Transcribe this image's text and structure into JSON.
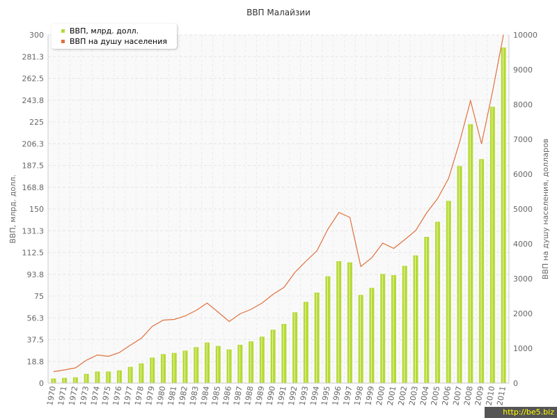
{
  "chart_data": {
    "type": "bar",
    "title": "ВВП Малайзии",
    "ylabel": "ВВП, млрд. долл.",
    "y2label": "ВВП на душу населения, долларов",
    "categories": [
      "1970",
      "1971",
      "1972",
      "1973",
      "1974",
      "1975",
      "1976",
      "1977",
      "1978",
      "1979",
      "1980",
      "1981",
      "1982",
      "1983",
      "1984",
      "1985",
      "1986",
      "1987",
      "1988",
      "1989",
      "1990",
      "1991",
      "1992",
      "1993",
      "1994",
      "1995",
      "1996",
      "1997",
      "1998",
      "1999",
      "2000",
      "2001",
      "2002",
      "2003",
      "2004",
      "2005",
      "2006",
      "2007",
      "2008",
      "2009",
      "2010",
      "2011"
    ],
    "ylim": [
      0,
      300
    ],
    "y2lim": [
      0,
      10000
    ],
    "y_ticks": [
      "0",
      "18.8",
      "37.5",
      "56.3",
      "75",
      "93.8",
      "112.5",
      "131.3",
      "150",
      "168.8",
      "187.5",
      "206.3",
      "225",
      "243.8",
      "262.5",
      "281.3",
      "300"
    ],
    "y2_ticks": [
      "0",
      "1000",
      "2000",
      "3000",
      "4000",
      "5000",
      "6000",
      "7000",
      "8000",
      "9000",
      "10000"
    ],
    "grid": true,
    "legend_position": "top-left",
    "series": [
      {
        "name": "ВВП, млрд. долл.",
        "type": "bar",
        "axis": "left",
        "color": "#b5d935",
        "values": [
          4,
          4.5,
          5,
          8,
          10,
          10,
          11,
          14,
          17,
          22,
          25,
          26,
          28,
          31,
          35,
          32,
          29,
          33,
          36,
          40,
          46,
          51,
          61,
          70,
          78,
          92,
          105,
          104,
          76,
          82,
          94,
          93,
          101,
          110,
          126,
          139,
          157,
          187,
          223,
          193,
          238,
          289
        ]
      },
      {
        "name": "ВВП на душу населения",
        "type": "line",
        "axis": "right",
        "color": "#e0703c",
        "values": [
          330,
          380,
          440,
          660,
          810,
          770,
          880,
          1090,
          1290,
          1630,
          1810,
          1830,
          1930,
          2090,
          2300,
          2040,
          1770,
          1990,
          2120,
          2300,
          2550,
          2750,
          3180,
          3500,
          3800,
          4420,
          4900,
          4760,
          3350,
          3600,
          4020,
          3870,
          4120,
          4380,
          4890,
          5300,
          5880,
          6920,
          8110,
          6870,
          8370,
          10000
        ]
      }
    ]
  },
  "watermark": "http://be5.biz"
}
